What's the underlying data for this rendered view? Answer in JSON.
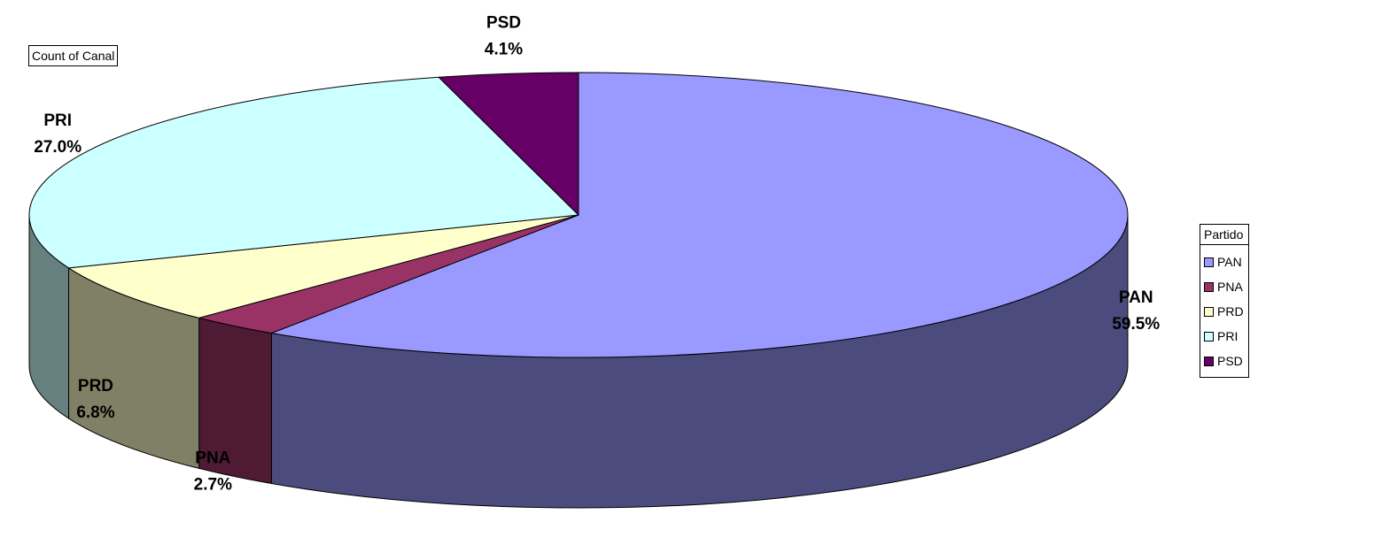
{
  "chart_data": {
    "type": "pie",
    "three_d": true,
    "field_button": "Count of Canal",
    "legend": {
      "title": "Partido",
      "placement": "right"
    },
    "slices": [
      {
        "label": "PAN",
        "value": 59.5,
        "display": "59.5%",
        "color": "#9999ff",
        "side_color": "#4b4b7d"
      },
      {
        "label": "PNA",
        "value": 2.7,
        "display": "2.7%",
        "color": "#993366",
        "side_color": "#4f1a34"
      },
      {
        "label": "PRD",
        "value": 6.8,
        "display": "6.8%",
        "color": "#ffffcc",
        "side_color": "#808066"
      },
      {
        "label": "PRI",
        "value": 27.0,
        "display": "27.0%",
        "color": "#ccffff",
        "side_color": "#668080"
      },
      {
        "label": "PSD",
        "value": 4.1,
        "display": "4.1%",
        "color": "#660066",
        "side_color": "#330033"
      }
    ]
  }
}
